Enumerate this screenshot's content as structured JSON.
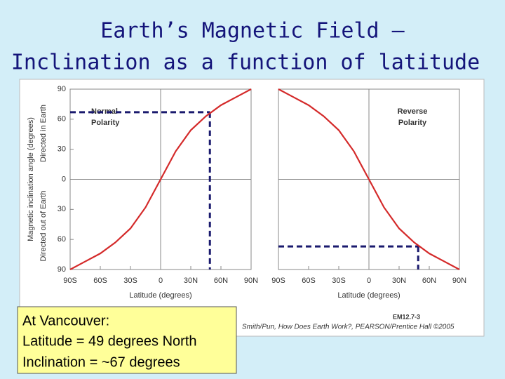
{
  "title": [
    "Earth’s Magnetic Field –",
    "Inclination as a function of latitude"
  ],
  "chart_data": [
    {
      "type": "line",
      "panel_label": [
        "Normal",
        "Polarity"
      ],
      "x_label": "Latitude (degrees)",
      "y_label": "Magnetic inclination angle (degrees)",
      "y_label_up": "Directed in Earth",
      "y_label_down": "Directed out of Earth",
      "x": [
        -90,
        -75,
        -60,
        -45,
        -30,
        -15,
        0,
        15,
        30,
        45,
        60,
        75,
        90
      ],
      "series": [
        {
          "color": "#d42a2a",
          "values": [
            -90,
            -82,
            -74,
            -63,
            -49,
            -28,
            0,
            28,
            49,
            63,
            74,
            82,
            90
          ]
        }
      ],
      "xlim": [
        -90,
        90
      ],
      "ylim": [
        -90,
        90
      ],
      "xticks": [
        {
          "value": -90,
          "label": "90S"
        },
        {
          "value": -60,
          "label": "60S"
        },
        {
          "value": -30,
          "label": "30S"
        },
        0,
        {
          "value": 30,
          "label": "30N"
        },
        {
          "value": 60,
          "label": "60N"
        },
        {
          "value": 90,
          "label": "90N"
        }
      ],
      "yticks": [
        90,
        60,
        30,
        0,
        {
          "value": -30,
          "label": "30"
        },
        {
          "value": -60,
          "label": "60"
        },
        {
          "value": -90,
          "label": "90"
        }
      ],
      "guide": {
        "x": 49,
        "y": 67,
        "color": "#1a1a6e"
      }
    },
    {
      "type": "line",
      "panel_label": [
        "Reverse",
        "Polarity"
      ],
      "x_label": "Latitude (degrees)",
      "x": [
        -90,
        -75,
        -60,
        -45,
        -30,
        -15,
        0,
        15,
        30,
        45,
        60,
        75,
        90
      ],
      "series": [
        {
          "color": "#d42a2a",
          "values": [
            90,
            82,
            74,
            63,
            49,
            28,
            0,
            -28,
            -49,
            -63,
            -74,
            -82,
            -90
          ]
        }
      ],
      "xlim": [
        -90,
        90
      ],
      "ylim": [
        -90,
        90
      ],
      "xticks": [
        {
          "value": -90,
          "label": "90S"
        },
        {
          "value": -60,
          "label": "60S"
        },
        {
          "value": -30,
          "label": "30S"
        },
        0,
        {
          "value": 30,
          "label": "30N"
        },
        {
          "value": 60,
          "label": "60N"
        },
        {
          "value": 90,
          "label": "90N"
        }
      ],
      "guide": {
        "x": 49,
        "y": -67,
        "color": "#1a1a6e"
      }
    }
  ],
  "figure_id": "EM12.7-3",
  "credit": "Smith/Pun, How Does Earth Work?, PEARSON/Prentice Hall ©2005",
  "callout": [
    "At Vancouver:",
    "Latitude = 49 degrees North",
    "Inclination = ~67 degrees"
  ]
}
